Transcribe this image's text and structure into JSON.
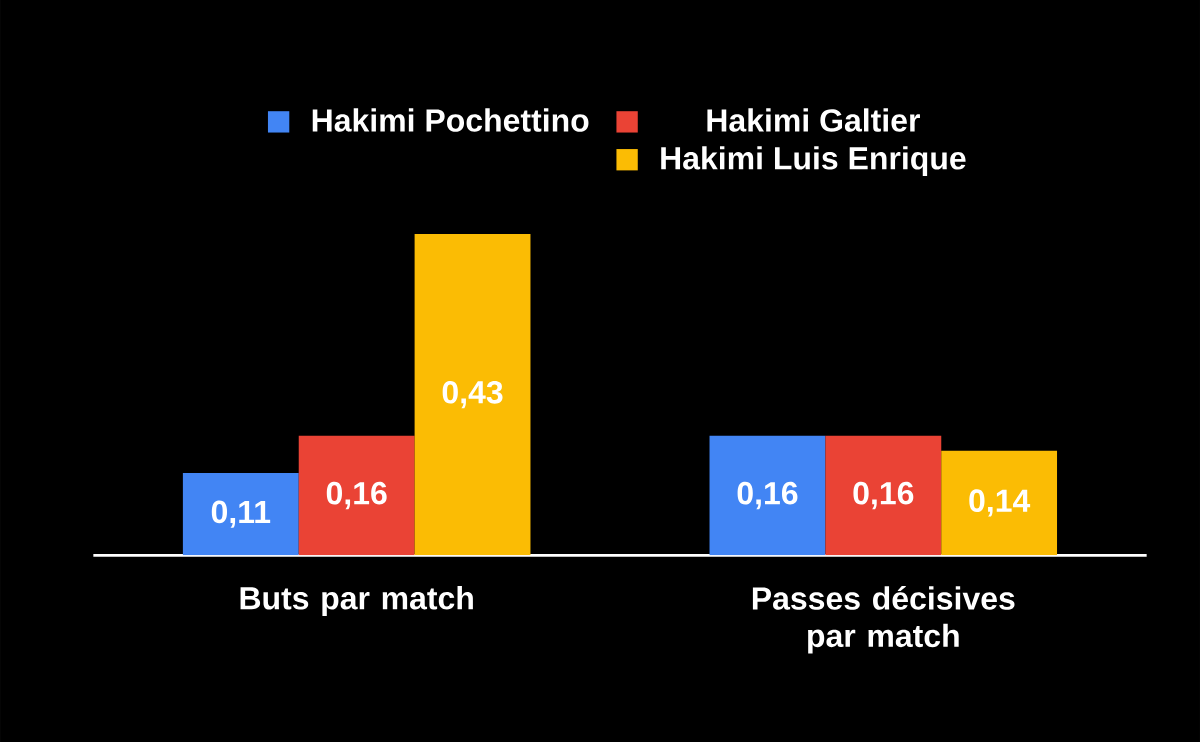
{
  "chart_data": {
    "type": "bar",
    "categories": [
      "Buts par match",
      "Passes décisives par match"
    ],
    "series": [
      {
        "name": "Hakimi Pochettino",
        "color": "#4285f4",
        "values": [
          0.11,
          0.16
        ],
        "value_labels": [
          "0,11",
          "0,16"
        ]
      },
      {
        "name": "Hakimi Galtier",
        "color": "#ea4335",
        "values": [
          0.16,
          0.16
        ],
        "value_labels": [
          "0,16",
          "0,16"
        ]
      },
      {
        "name": "Hakimi Luis Enrique",
        "color": "#fbbc04",
        "values": [
          0.43,
          0.14
        ],
        "value_labels": [
          "0,43",
          "0,14"
        ]
      }
    ],
    "tick_labels": "x",
    "legend": "top"
  }
}
